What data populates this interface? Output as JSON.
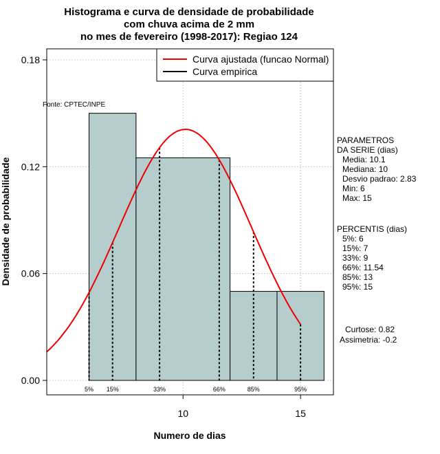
{
  "chart_data": {
    "type": "bar",
    "title_lines": [
      "Histograma e curva de densidade de probabilidade",
      "com chuva acima de 2 mm",
      "no mes de fevereiro (1998-2017): Regiao 124"
    ],
    "xlabel": "Numero de dias",
    "ylabel": "Densidade de probabilidade",
    "xlim": [
      4.2,
      16.4
    ],
    "ylim": [
      0,
      0.18
    ],
    "x_ticks": [
      10,
      15
    ],
    "y_ticks": [
      "0.00",
      "0.06",
      "0.12",
      "0.18"
    ],
    "grid": true,
    "bars": [
      {
        "x0": 6,
        "x1": 8,
        "density": 0.15
      },
      {
        "x0": 8,
        "x1": 12,
        "density": 0.125
      },
      {
        "x0": 12,
        "x1": 14,
        "density": 0.05
      },
      {
        "x0": 14,
        "x1": 16,
        "density": 0.05
      }
    ],
    "normal_curve": {
      "mean": 10.1,
      "sd": 2.83,
      "x_range": [
        4.2,
        15.0
      ],
      "color": "#ee0000"
    },
    "bar_color": "#b5cdcd",
    "percentiles": [
      {
        "label": "5%",
        "x": 6
      },
      {
        "label": "15%",
        "x": 7
      },
      {
        "label": "33%",
        "x": 9
      },
      {
        "label": "66%",
        "x": 11.54
      },
      {
        "label": "85%",
        "x": 13
      },
      {
        "label": "95%",
        "x": 15
      }
    ],
    "legend": {
      "position": "top-right",
      "entries": [
        {
          "label": "Curva ajustada (funcao Normal)",
          "color": "#ee0000"
        },
        {
          "label": "Curva empirica",
          "color": "#000000"
        }
      ]
    },
    "source_note": "Fonte: CPTEC/INPE",
    "side_panel": {
      "params_title": [
        "PARAMETROS",
        "DA SERIE (dias)"
      ],
      "params": [
        "Media: 10.1",
        "Mediana: 10",
        "Desvio padrao: 2.83",
        "Min: 6",
        "Max: 15"
      ],
      "percentis_title": "PERCENTIS (dias)",
      "percentis": [
        "5%: 6",
        "15%: 7",
        "33%: 9",
        "66%: 11.54",
        "85%: 13",
        "95%: 15"
      ],
      "stats": [
        "Curtose: 0.82",
        "Assimetria: -0.2"
      ]
    }
  }
}
